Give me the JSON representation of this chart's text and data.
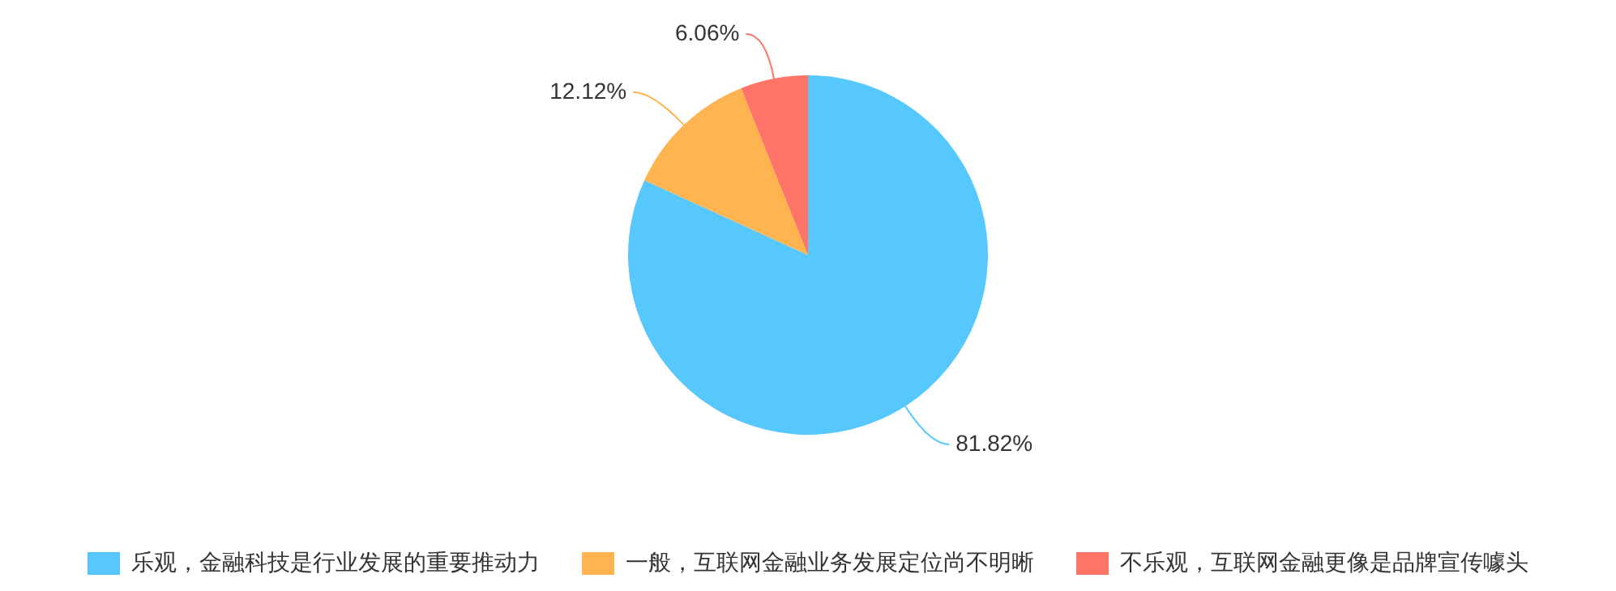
{
  "chart_data": {
    "type": "pie",
    "categories": [
      "乐观，金融科技是行业发展的重要推动力",
      "一般，互联网金融业务发展定位尚不明晰",
      "不乐观，互联网金融更像是品牌宣传噱头"
    ],
    "values": [
      81.82,
      12.12,
      6.06
    ],
    "colors": [
      "#57c8fd",
      "#ffb44f",
      "#fe7568"
    ],
    "value_labels": [
      "81.82%",
      "12.12%",
      "6.06%"
    ],
    "legend": "bottom"
  }
}
